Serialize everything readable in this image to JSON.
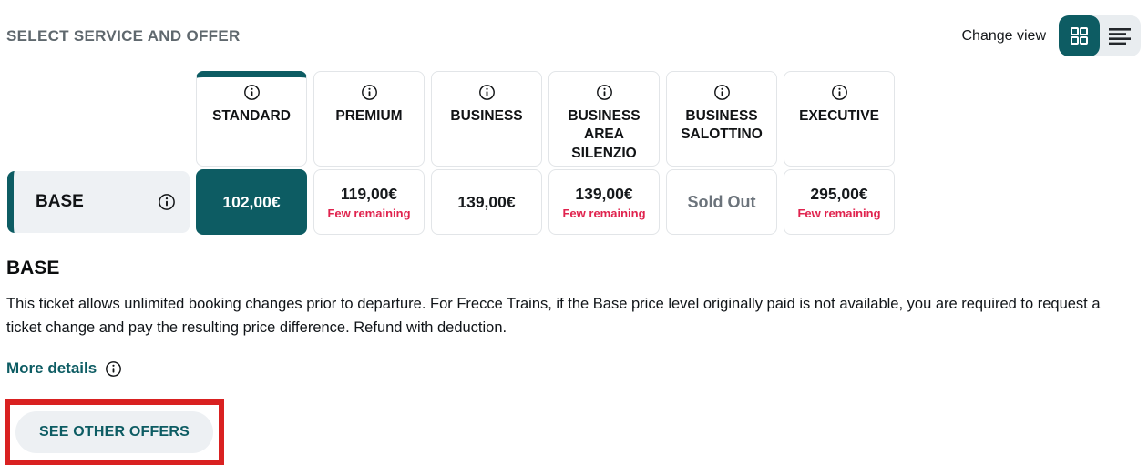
{
  "header": {
    "title": "SELECT SERVICE AND OFFER",
    "change_view_label": "Change view",
    "active_view": "grid"
  },
  "icons": {
    "service_info": "info-circle-icon",
    "offer_info": "info-circle-icon",
    "more_details_info": "info-circle-icon",
    "grid_view": "grid-squares-icon",
    "list_view": "list-lines-icon"
  },
  "services": [
    {
      "name": "STANDARD",
      "selected": true
    },
    {
      "name": "PREMIUM",
      "selected": false
    },
    {
      "name": "BUSINESS",
      "selected": false
    },
    {
      "name": "BUSINESS AREA SILENZIO",
      "selected": false
    },
    {
      "name": "BUSINESS SALOTTINO",
      "selected": false
    },
    {
      "name": "EXECUTIVE",
      "selected": false
    }
  ],
  "offer_row": {
    "label": "BASE",
    "prices": [
      {
        "value": "102,00€",
        "selected": true
      },
      {
        "value": "119,00€",
        "note": "Few remaining"
      },
      {
        "value": "139,00€"
      },
      {
        "value": "139,00€",
        "note": "Few remaining"
      },
      {
        "value": "Sold Out",
        "sold_out": true
      },
      {
        "value": "295,00€",
        "note": "Few remaining"
      }
    ]
  },
  "offer_details": {
    "heading": "BASE",
    "description": "This ticket allows unlimited booking changes prior to departure. For Frecce Trains, if the Base price level originally paid is not available, you are required to request a ticket change and pay the resulting price difference. Refund with deduction.",
    "more_details_label": "More details"
  },
  "actions": {
    "see_other_offers_label": "SEE OTHER OFFERS"
  },
  "colors": {
    "accent_teal": "#0d5c63",
    "availability_red": "#e0234e",
    "annotation_red": "#d92121",
    "row_background": "#eef1f4",
    "card_border": "#e2e5e8",
    "sold_out_gray": "#6b737b",
    "title_gray": "#5f686e"
  }
}
